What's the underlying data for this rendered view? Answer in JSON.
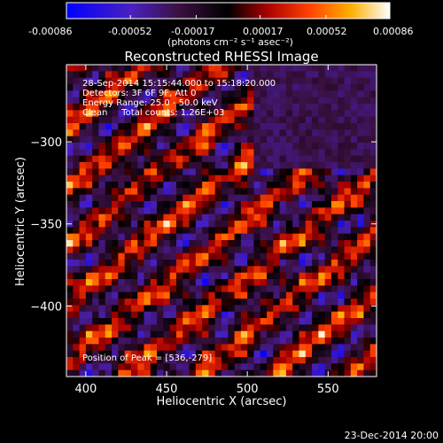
{
  "colorbar": {
    "ticks": [
      "-0.00086",
      "-0.00052",
      "-0.00017",
      "0.00017",
      "0.00052",
      "0.00086"
    ],
    "unit_label": "(photons cm⁻² s⁻¹ asec⁻²)"
  },
  "info": {
    "time": "28-Sep-2014 15:15:44.000 to 15:18:20.000",
    "detectors": "Detectors: 3F 6F 9F, Att 0",
    "energy": "Energy Range: 25.0 - 50.0 keV",
    "clean": "Clean     Total counts: 1.26E+03",
    "peak": "Position of Peak = [536,-279]"
  },
  "footer": {
    "timestamp": "23-Dec-2014 20:00"
  },
  "chart_data": {
    "type": "heatmap",
    "title": "Reconstructed RHESSI Image",
    "xlabel": "Heliocentric X (arcsec)",
    "ylabel": "Heliocentric Y (arcsec)",
    "xlim": [
      388,
      580
    ],
    "ylim": [
      -443,
      -253
    ],
    "xticks": [
      400,
      450,
      500,
      550
    ],
    "yticks": [
      -300,
      -350,
      -400
    ],
    "colorbar_range": [
      -0.00086,
      0.00086
    ],
    "colormap": "blue-purple-black-red-orange-yellow-white",
    "peak_position": [
      536,
      -279
    ]
  }
}
